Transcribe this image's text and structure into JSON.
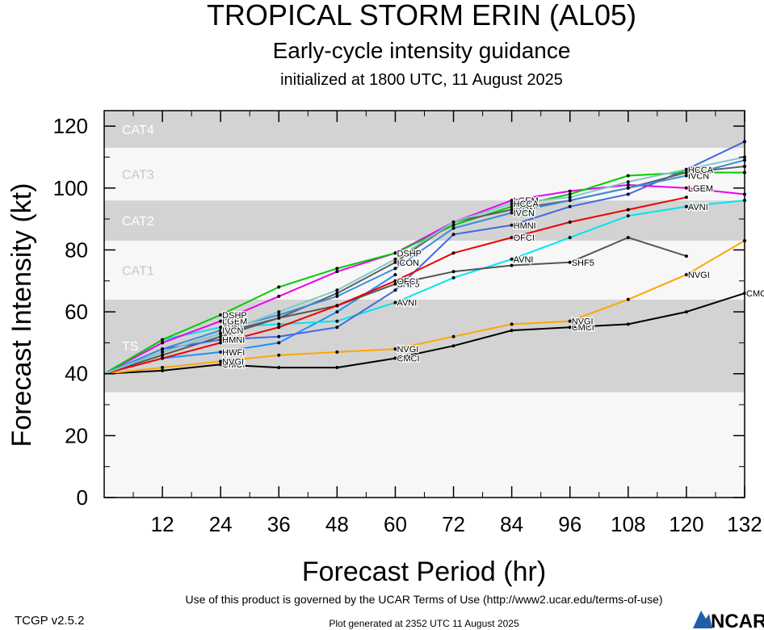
{
  "header": {
    "title": "TROPICAL STORM ERIN (AL05)",
    "subtitle": "Early-cycle intensity guidance",
    "init_line": "initialized at 1800 UTC, 11 August 2025"
  },
  "footer": {
    "version": "TCGP v2.5.2",
    "terms": "Use of this product is governed by the UCAR Terms of Use (http://www2.ucar.edu/terms-of-use)",
    "generated": "Plot generated at 2352 UTC   11 August 2025",
    "logo_text": "NCAR"
  },
  "chart_data": {
    "type": "line",
    "xlabel": "Forecast Period (hr)",
    "ylabel": "Forecast Intensity (kt)",
    "xlim": [
      0,
      132
    ],
    "ylim": [
      0,
      125
    ],
    "xticks": [
      12,
      24,
      36,
      48,
      60,
      72,
      84,
      96,
      108,
      120,
      132
    ],
    "yticks": [
      0,
      20,
      40,
      60,
      80,
      100,
      120
    ],
    "grid": false,
    "bands": [
      {
        "label": "",
        "from": 0,
        "to": 34,
        "color": "#f7f7f7",
        "label_color": "#ffffff"
      },
      {
        "label": "TS",
        "from": 34,
        "to": 64,
        "color": "#d3d3d3",
        "label_color": "#ffffff"
      },
      {
        "label": "CAT1",
        "from": 64,
        "to": 83,
        "color": "#f7f7f7",
        "label_color": "#c8c8c8"
      },
      {
        "label": "CAT2",
        "from": 83,
        "to": 96,
        "color": "#d3d3d3",
        "label_color": "#ffffff"
      },
      {
        "label": "CAT3",
        "from": 96,
        "to": 113,
        "color": "#f7f7f7",
        "label_color": "#c8c8c8"
      },
      {
        "label": "CAT4",
        "from": 113,
        "to": 125,
        "color": "#d3d3d3",
        "label_color": "#ffffff"
      }
    ],
    "series": [
      {
        "name": "CMCI",
        "color": "#000000",
        "x": [
          0,
          12,
          24,
          36,
          48,
          60,
          72,
          84,
          96,
          108,
          120,
          132
        ],
        "y": [
          40,
          41,
          43,
          42,
          42,
          45,
          49,
          54,
          55,
          56,
          60,
          66
        ],
        "labels": [
          {
            "x": 24,
            "y": 43
          },
          {
            "x": 60,
            "y": 45
          },
          {
            "x": 96,
            "y": 55
          },
          {
            "x": 132,
            "y": 66
          }
        ]
      },
      {
        "name": "NVGI",
        "color": "#ffa500",
        "x": [
          0,
          12,
          24,
          36,
          48,
          60,
          72,
          84,
          96,
          108,
          120,
          132
        ],
        "y": [
          40,
          42,
          44,
          46,
          47,
          48,
          52,
          56,
          57,
          64,
          72,
          83
        ],
        "labels": [
          {
            "x": 24,
            "y": 44
          },
          {
            "x": 60,
            "y": 48
          },
          {
            "x": 96,
            "y": 57
          },
          {
            "x": 120,
            "y": 72
          }
        ]
      },
      {
        "name": "HWFI",
        "color": "#1e90ff",
        "x": [
          0,
          12,
          24,
          36,
          48,
          60
        ],
        "y": [
          40,
          45,
          47,
          50,
          60,
          72
        ],
        "labels": [
          {
            "x": 24,
            "y": 47
          }
        ]
      },
      {
        "name": "AVNI",
        "color": "#00e5ee",
        "x": [
          0,
          12,
          24,
          36,
          48,
          60,
          72,
          84,
          96,
          108,
          120,
          132
        ],
        "y": [
          40,
          51,
          55,
          56,
          57,
          63,
          71,
          77,
          84,
          91,
          94,
          96
        ],
        "labels": [
          {
            "x": 24,
            "y": 55
          },
          {
            "x": 60,
            "y": 63
          },
          {
            "x": 84,
            "y": 77
          },
          {
            "x": 120,
            "y": 94
          }
        ]
      },
      {
        "name": "SHF5",
        "color": "#555555",
        "x": [
          0,
          12,
          24,
          36,
          48,
          60,
          72,
          84,
          96,
          108,
          120
        ],
        "y": [
          40,
          46,
          52,
          58,
          62,
          69,
          73,
          75,
          76,
          84,
          78
        ],
        "labels": [
          {
            "x": 60,
            "y": 69
          },
          {
            "x": 96,
            "y": 76
          }
        ]
      },
      {
        "name": "HMNI",
        "color": "#4169e1",
        "x": [
          0,
          12,
          24,
          36,
          48,
          60,
          72,
          84,
          96,
          108,
          120,
          132
        ],
        "y": [
          40,
          48,
          51,
          52,
          55,
          67,
          85,
          88,
          94,
          98,
          106,
          115
        ],
        "labels": [
          {
            "x": 24,
            "y": 51
          },
          {
            "x": 84,
            "y": 88
          }
        ]
      },
      {
        "name": "OFCI",
        "color": "#ee0000",
        "x": [
          0,
          12,
          24,
          36,
          48,
          60,
          72,
          84,
          96,
          108,
          120
        ],
        "y": [
          40,
          45,
          50,
          55,
          62,
          70,
          79,
          84,
          89,
          93,
          97
        ],
        "labels": [
          {
            "x": 60,
            "y": 70
          },
          {
            "x": 84,
            "y": 84
          }
        ]
      },
      {
        "name": "LGEM",
        "color": "#ee00ee",
        "x": [
          0,
          12,
          24,
          36,
          48,
          60,
          72,
          84,
          96,
          108,
          120,
          132
        ],
        "y": [
          40,
          50,
          57,
          65,
          73,
          79,
          89,
          96,
          99,
          101,
          100,
          98
        ],
        "labels": [
          {
            "x": 24,
            "y": 57
          },
          {
            "x": 84,
            "y": 96
          },
          {
            "x": 120,
            "y": 100
          }
        ]
      },
      {
        "name": "DSHP",
        "color": "#00cc00",
        "x": [
          0,
          12,
          24,
          36,
          48,
          60,
          72,
          84,
          96,
          108,
          120,
          132
        ],
        "y": [
          40,
          51,
          59,
          68,
          74,
          79,
          88,
          94,
          98,
          104,
          105,
          105
        ],
        "labels": [
          {
            "x": 24,
            "y": 59
          },
          {
            "x": 60,
            "y": 79
          },
          {
            "x": 120,
            "y": 105
          }
        ]
      },
      {
        "name": "ICON",
        "color": "#606060",
        "x": [
          0,
          12,
          24,
          36,
          48,
          60,
          72,
          84,
          96,
          108,
          120,
          132
        ],
        "y": [
          40,
          47,
          53,
          58,
          66,
          76,
          89,
          93,
          96,
          100,
          105,
          107
        ],
        "labels": [
          {
            "x": 60,
            "y": 76
          },
          {
            "x": 84,
            "y": 93
          }
        ]
      },
      {
        "name": "IVCN",
        "color": "#3c8cdc",
        "x": [
          0,
          12,
          24,
          36,
          48,
          60,
          72,
          84,
          96,
          108,
          120,
          132
        ],
        "y": [
          40,
          48,
          54,
          59,
          65,
          74,
          87,
          92,
          96,
          100,
          104,
          109
        ],
        "labels": [
          {
            "x": 24,
            "y": 54
          },
          {
            "x": 84,
            "y": 92
          },
          {
            "x": 120,
            "y": 104
          }
        ]
      },
      {
        "name": "HCCA",
        "color": "#7fc8c8",
        "x": [
          0,
          12,
          24,
          36,
          48,
          60,
          72,
          84,
          96,
          108,
          120,
          132
        ],
        "y": [
          40,
          47,
          53,
          60,
          67,
          77,
          89,
          95,
          97,
          102,
          106,
          110
        ],
        "labels": [
          {
            "x": 84,
            "y": 95
          },
          {
            "x": 120,
            "y": 106
          }
        ]
      }
    ]
  }
}
